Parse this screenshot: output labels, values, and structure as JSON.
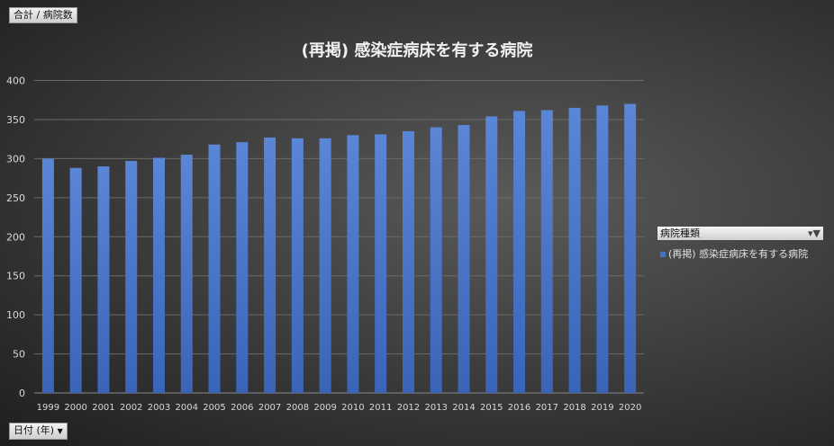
{
  "value_field_button": "合計 / 病院数",
  "axis_field_button": "日付 (年)",
  "axis_field_arrow": "▼",
  "legend": {
    "header": "病院種類",
    "filter_icon": "▾▼",
    "items": [
      "(再掲) 感染症病床を有する病院"
    ]
  },
  "colors": {
    "bar": "#4472c4",
    "grid": "#6a6a6a"
  },
  "chart_data": {
    "type": "bar",
    "title": "(再掲) 感染症病床を有する病院",
    "xlabel": "",
    "ylabel": "",
    "ylim": [
      0,
      400
    ],
    "yticks": [
      0,
      50,
      100,
      150,
      200,
      250,
      300,
      350,
      400
    ],
    "grid": true,
    "legend_position": "right",
    "categories": [
      "1999",
      "2000",
      "2001",
      "2002",
      "2003",
      "2004",
      "2005",
      "2006",
      "2007",
      "2008",
      "2009",
      "2010",
      "2011",
      "2012",
      "2013",
      "2014",
      "2015",
      "2016",
      "2017",
      "2018",
      "2019",
      "2020"
    ],
    "series": [
      {
        "name": "(再掲) 感染症病床を有する病院",
        "values": [
          300,
          288,
          290,
          297,
          301,
          305,
          318,
          321,
          327,
          326,
          326,
          330,
          331,
          335,
          340,
          343,
          354,
          361,
          362,
          365,
          368,
          370
        ]
      }
    ]
  }
}
